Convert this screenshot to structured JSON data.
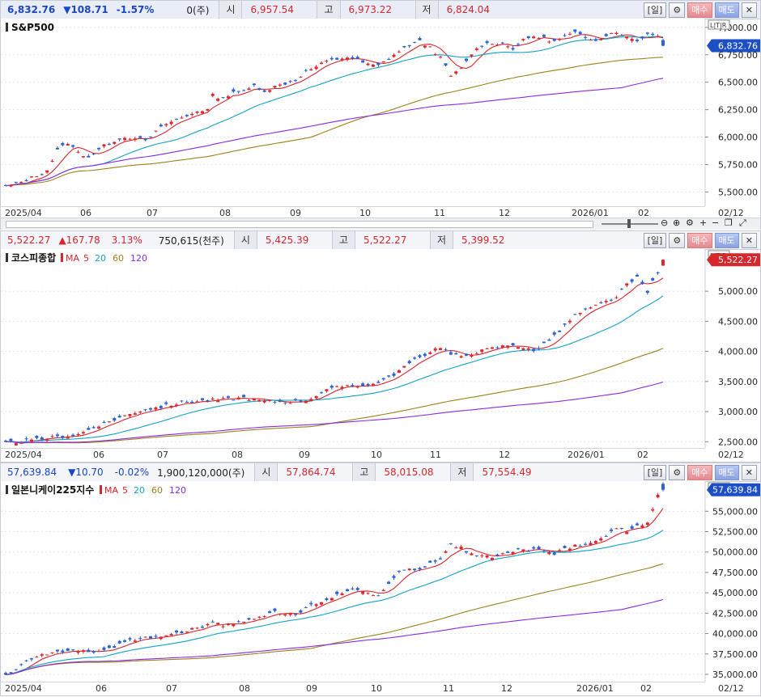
{
  "panels": [
    {
      "quote": {
        "price": "6,832.76",
        "change": "▼108.71",
        "pct": "-1.57%",
        "volume": "0(주)",
        "open_label": "시",
        "open": "6,957.54",
        "high_label": "고",
        "high": "6,973.22",
        "low_label": "저",
        "low": "6,824.04",
        "dir": "dn"
      },
      "tools": {
        "period": "일",
        "buy": "매수",
        "sell": "매도"
      },
      "lock_label": "L|T|R",
      "legend": {
        "name": "S&P500",
        "ma_label": "",
        "ma": []
      },
      "axis_labels": [
        "7,000.00",
        "6,750.00",
        "6,500.00",
        "6,250.00",
        "6,000.00",
        "5,750.00",
        "5,500.00"
      ],
      "last_badge": "6,832.76",
      "x_labels": [
        "2025/04",
        "06",
        "07",
        "08",
        "09",
        "10",
        "11",
        "12",
        "2026/01",
        "02"
      ],
      "x_end": "02/12",
      "chart_data": {
        "type": "candlestick",
        "title": "S&P500",
        "ylim": [
          5400,
          7080
        ],
        "y_ticks": [
          7000,
          6750,
          6500,
          6250,
          6000,
          5750,
          5500
        ],
        "close_path": [
          [
            0,
            5550
          ],
          [
            3,
            5590
          ],
          [
            6,
            5650
          ],
          [
            8,
            5700
          ],
          [
            10,
            5880
          ],
          [
            12,
            5950
          ],
          [
            14,
            5860
          ],
          [
            16,
            5820
          ],
          [
            19,
            5920
          ],
          [
            22,
            5990
          ],
          [
            25,
            6000
          ],
          [
            27,
            5960
          ],
          [
            29,
            6050
          ],
          [
            31,
            6120
          ],
          [
            33,
            6160
          ],
          [
            35,
            6190
          ],
          [
            37,
            6240
          ],
          [
            39,
            6250
          ],
          [
            40,
            6380
          ],
          [
            42,
            6350
          ],
          [
            44,
            6420
          ],
          [
            46,
            6410
          ],
          [
            48,
            6470
          ],
          [
            50,
            6420
          ],
          [
            52,
            6460
          ],
          [
            54,
            6490
          ],
          [
            56,
            6520
          ],
          [
            58,
            6600
          ],
          [
            60,
            6640
          ],
          [
            62,
            6690
          ],
          [
            64,
            6710
          ],
          [
            66,
            6730
          ],
          [
            68,
            6700
          ],
          [
            70,
            6660
          ],
          [
            72,
            6650
          ],
          [
            74,
            6720
          ],
          [
            76,
            6780
          ],
          [
            78,
            6840
          ],
          [
            80,
            6870
          ],
          [
            82,
            6820
          ],
          [
            84,
            6720
          ],
          [
            86,
            6560
          ],
          [
            88,
            6620
          ],
          [
            90,
            6760
          ],
          [
            92,
            6840
          ],
          [
            94,
            6860
          ],
          [
            96,
            6850
          ],
          [
            98,
            6810
          ],
          [
            100,
            6880
          ],
          [
            102,
            6920
          ],
          [
            104,
            6900
          ],
          [
            106,
            6870
          ],
          [
            108,
            6920
          ],
          [
            110,
            6950
          ],
          [
            112,
            6900
          ],
          [
            114,
            6890
          ],
          [
            116,
            6930
          ],
          [
            118,
            6960
          ],
          [
            120,
            6910
          ],
          [
            122,
            6880
          ],
          [
            124,
            6940
          ],
          [
            126,
            6933
          ],
          [
            127,
            6832.76
          ]
        ],
        "ma": [
          {
            "name": "5",
            "color": "#d8262d"
          },
          {
            "name": "20",
            "color": "#11a3c7"
          },
          {
            "name": "60",
            "color": "#a0801a"
          },
          {
            "name": "120",
            "color": "#8a2be2"
          }
        ]
      }
    },
    {
      "quote": {
        "price": "5,522.27",
        "change": "▲167.78",
        "pct": "3.13%",
        "volume": "750,615(천주)",
        "open_label": "시",
        "open": "5,425.39",
        "high_label": "고",
        "high": "5,522.27",
        "low_label": "저",
        "low": "5,399.52",
        "dir": "up"
      },
      "tools": {
        "period": "일",
        "buy": "매수",
        "sell": "매도"
      },
      "lock_label": "L|T|R",
      "legend": {
        "name": "코스피종합",
        "ma_label": "MA",
        "ma": [
          "5",
          "20",
          "60",
          "120"
        ]
      },
      "axis_labels": [
        "5,000.00",
        "4,500.00",
        "4,000.00",
        "3,500.00",
        "3,000.00",
        "2,500.00"
      ],
      "last_badge": "5,522.27",
      "x_labels": [
        "2025/04",
        "06",
        "07",
        "08",
        "09",
        "10",
        "11",
        "12",
        "2026/01",
        "02"
      ],
      "x_end": "02/12",
      "chart_data": {
        "type": "candlestick",
        "title": "코스피종합",
        "ylim": [
          2450,
          5700
        ],
        "y_ticks": [
          5000,
          4500,
          4000,
          3500,
          3000,
          2500
        ],
        "close_path": [
          [
            0,
            2480
          ],
          [
            5,
            2520
          ],
          [
            10,
            2580
          ],
          [
            14,
            2620
          ],
          [
            18,
            2780
          ],
          [
            22,
            2900
          ],
          [
            26,
            3020
          ],
          [
            30,
            3080
          ],
          [
            34,
            3150
          ],
          [
            38,
            3180
          ],
          [
            42,
            3200
          ],
          [
            46,
            3230
          ],
          [
            50,
            3170
          ],
          [
            54,
            3160
          ],
          [
            58,
            3190
          ],
          [
            62,
            3350
          ],
          [
            66,
            3440
          ],
          [
            70,
            3430
          ],
          [
            74,
            3560
          ],
          [
            78,
            3800
          ],
          [
            82,
            4000
          ],
          [
            84,
            4080
          ],
          [
            86,
            3950
          ],
          [
            88,
            3900
          ],
          [
            90,
            3970
          ],
          [
            94,
            4050
          ],
          [
            98,
            4120
          ],
          [
            102,
            4000
          ],
          [
            106,
            4250
          ],
          [
            110,
            4600
          ],
          [
            114,
            4750
          ],
          [
            118,
            4900
          ],
          [
            120,
            5100
          ],
          [
            122,
            5220
          ],
          [
            124,
            5000
          ],
          [
            126,
            5300
          ],
          [
            127,
            5522.27
          ]
        ],
        "ma": [
          {
            "name": "5",
            "color": "#d8262d"
          },
          {
            "name": "20",
            "color": "#11a3c7"
          },
          {
            "name": "60",
            "color": "#a0801a"
          },
          {
            "name": "120",
            "color": "#8a2be2"
          }
        ]
      }
    },
    {
      "quote": {
        "price": "57,639.84",
        "change": "▼10.70",
        "pct": "-0.02%",
        "volume": "1,900,120,000(주)",
        "open_label": "시",
        "open": "57,864.74",
        "high_label": "고",
        "high": "58,015.08",
        "low_label": "저",
        "low": "57,554.49",
        "dir": "dn"
      },
      "tools": {
        "period": "일",
        "buy": "매수",
        "sell": "매도"
      },
      "lock_label": "L|T|R",
      "legend": {
        "name": "일본니케이225지수",
        "ma_label": "MA",
        "ma": [
          "5",
          "20",
          "60",
          "120"
        ]
      },
      "axis_labels": [
        "55,000.00",
        "52,500.00",
        "50,000.00",
        "47,500.00",
        "45,000.00",
        "42,500.00",
        "40,000.00",
        "37,500.00",
        "35,000.00"
      ],
      "last_badge": "57,639.84",
      "x_labels": [
        "2025/04",
        "06",
        "07",
        "08",
        "09",
        "10",
        "11",
        "12",
        "2026/01",
        "02"
      ],
      "x_end": "02/12",
      "chart_data": {
        "type": "candlestick",
        "title": "일본니케이225지수",
        "ylim": [
          34500,
          58700
        ],
        "y_ticks": [
          55000,
          52500,
          50000,
          47500,
          45000,
          42500,
          40000,
          37500,
          35000
        ],
        "close_path": [
          [
            0,
            34800
          ],
          [
            4,
            36500
          ],
          [
            8,
            37600
          ],
          [
            12,
            37900
          ],
          [
            16,
            37700
          ],
          [
            20,
            38100
          ],
          [
            24,
            39100
          ],
          [
            28,
            39600
          ],
          [
            32,
            39800
          ],
          [
            36,
            40500
          ],
          [
            40,
            41200
          ],
          [
            44,
            41000
          ],
          [
            48,
            42000
          ],
          [
            52,
            42600
          ],
          [
            56,
            42300
          ],
          [
            60,
            43800
          ],
          [
            64,
            44800
          ],
          [
            68,
            45400
          ],
          [
            72,
            44600
          ],
          [
            76,
            47500
          ],
          [
            80,
            48000
          ],
          [
            84,
            49200
          ],
          [
            86,
            51000
          ],
          [
            88,
            50500
          ],
          [
            90,
            49700
          ],
          [
            94,
            49300
          ],
          [
            98,
            50100
          ],
          [
            102,
            50300
          ],
          [
            106,
            49800
          ],
          [
            110,
            50800
          ],
          [
            114,
            51300
          ],
          [
            118,
            52800
          ],
          [
            120,
            52600
          ],
          [
            122,
            53300
          ],
          [
            124,
            53600
          ],
          [
            126,
            56800
          ],
          [
            127,
            57639.84
          ]
        ],
        "ma": [
          {
            "name": "5",
            "color": "#d8262d"
          },
          {
            "name": "20",
            "color": "#11a3c7"
          },
          {
            "name": "60",
            "color": "#a0801a"
          },
          {
            "name": "120",
            "color": "#8a2be2"
          }
        ]
      }
    }
  ]
}
